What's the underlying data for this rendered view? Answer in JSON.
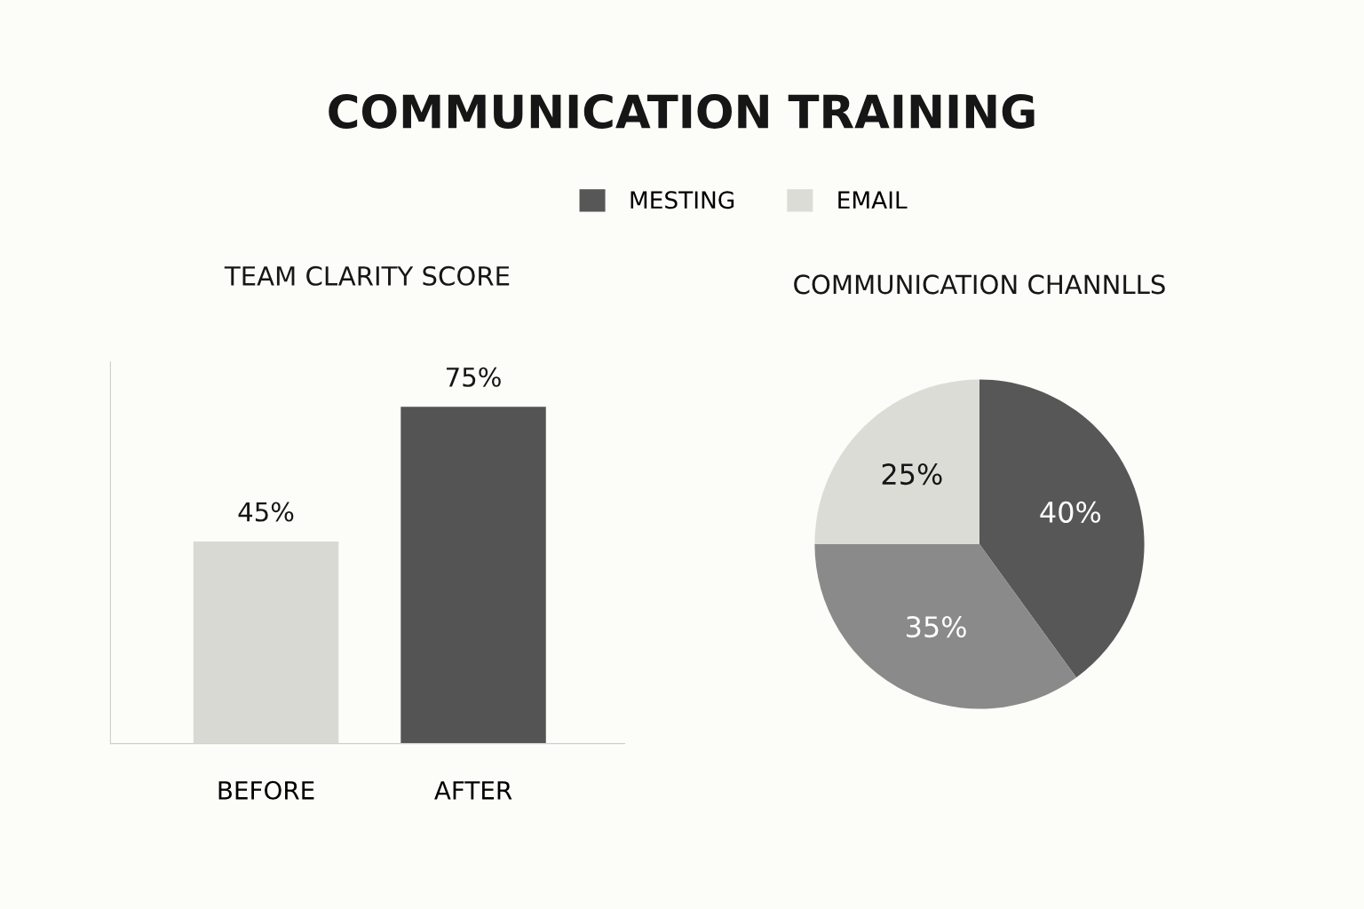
{
  "chart_data": [
    {
      "type": "other",
      "title": "COMMUNICATION TRAINING"
    },
    {
      "type": "bar",
      "title": "TEAM CLARITY SCORE",
      "categories": [
        "BEFORE",
        "AFTER"
      ],
      "values": [
        45,
        75
      ],
      "colors": [
        "#d9d9d4",
        "#545454"
      ],
      "value_labels": [
        "45%",
        "75%"
      ],
      "ylim": [
        0,
        85
      ],
      "tick_labels": "x"
    },
    {
      "type": "pie",
      "title": "COMMUNICATION CHANNLLS",
      "categories": [
        "MESTING",
        null,
        "EMAIL"
      ],
      "values": [
        40,
        35,
        25
      ],
      "colors": [
        "#575757",
        "#8a8a8a",
        "#dcdcd7"
      ],
      "value_labels": [
        "40%",
        "35%",
        "25%"
      ],
      "legend": "top"
    }
  ]
}
